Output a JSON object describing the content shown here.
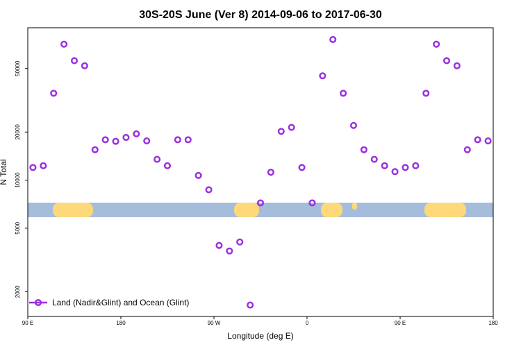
{
  "chart_data": {
    "type": "scatter",
    "title": "30S-20S June (Ver 8)   2014-09-06 to 2017-06-30",
    "xlabel": "Longitude (deg E)",
    "ylabel": "N Total",
    "y_scale": "log",
    "xlim": [
      90,
      540
    ],
    "ylim": [
      1400,
      90000
    ],
    "x_ticks": [
      {
        "value": 90,
        "label": "90 E"
      },
      {
        "value": 180,
        "label": "180"
      },
      {
        "value": 270,
        "label": "90 W"
      },
      {
        "value": 360,
        "label": "0"
      },
      {
        "value": 450,
        "label": "90 E"
      },
      {
        "value": 540,
        "label": "180"
      }
    ],
    "y_ticks": [
      {
        "value": 2000,
        "label": "2000"
      },
      {
        "value": 5000,
        "label": "5000"
      },
      {
        "value": 10000,
        "label": "10000"
      },
      {
        "value": 20000,
        "label": "20000"
      },
      {
        "value": 50000,
        "label": "50000"
      }
    ],
    "series": [
      {
        "name": "Land (Nadir&Glint) and Ocean (Glint)",
        "color": "#9b30e0",
        "marker": "open-circle",
        "x": [
          95,
          105,
          115,
          125,
          135,
          145,
          155,
          165,
          175,
          185,
          195,
          205,
          215,
          225,
          235,
          245,
          255,
          265,
          275,
          285,
          295,
          305,
          315,
          325,
          335,
          345,
          355,
          365,
          375,
          385,
          395,
          405,
          415,
          425,
          435,
          445,
          455,
          465,
          475,
          485,
          495,
          505,
          515,
          525,
          535
        ],
        "y": [
          12000,
          12300,
          35000,
          71000,
          56000,
          52000,
          15500,
          17900,
          17500,
          18500,
          19500,
          17600,
          13500,
          12300,
          17900,
          17900,
          10700,
          8700,
          3900,
          3600,
          4100,
          1650,
          7200,
          11200,
          20200,
          21400,
          12000,
          7200,
          45000,
          76000,
          35000,
          22000,
          15500,
          13500,
          12300,
          11300,
          12000,
          12300,
          35000,
          71000,
          56000,
          52000,
          15500,
          17900,
          17600
        ]
      }
    ],
    "legend": {
      "placement": "bottom-left",
      "label": "Land (Nadir&Glint) and Ocean (Glint)"
    },
    "map_strip": {
      "ocean_color": "#a6bcdb",
      "land_color": "#fdd97a"
    },
    "grid": false
  }
}
